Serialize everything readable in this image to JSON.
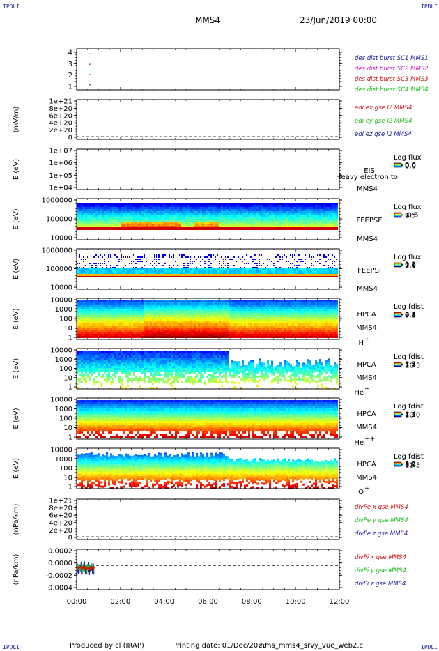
{
  "header": {
    "corner_label": "IPDLI",
    "spacecraft": "MMS4",
    "date": "23/Jun/2019 00:00"
  },
  "footer": {
    "produced_by": "Produced by cl (IRAP)",
    "printing_date": "Printing date: 01/Dec/2023",
    "filename": "mms_mms4_srvy_vue_web2.cl"
  },
  "colors": {
    "blue": "#1a1aa0",
    "magenta": "#d020d0",
    "red": "#d01010",
    "green": "#20c020"
  },
  "chart_data": [
    {
      "id": "burst",
      "type": "scatter",
      "yticks": [
        "4",
        "3",
        "2",
        "1"
      ],
      "ylim": [
        0.5,
        4.5
      ],
      "series": [
        {
          "name": "des dist burst SC1 MMS1",
          "color": "#1a1aa0",
          "x": [
            0.6
          ],
          "y": [
            1
          ]
        },
        {
          "name": "des dist burst SC2 MMS2",
          "color": "#d020d0",
          "x": [
            0.6
          ],
          "y": [
            2
          ]
        },
        {
          "name": "des dist burst SC3 MMS3",
          "color": "#d01010",
          "x": [
            0.6
          ],
          "y": [
            3
          ]
        },
        {
          "name": "des dist burst SC4 MMS4",
          "color": "#20c020",
          "x": [
            0.6
          ],
          "y": [
            4
          ]
        }
      ]
    },
    {
      "id": "edi",
      "type": "line",
      "ylabel": "(mV/m)",
      "yticks": [
        "1e+21",
        "8e+20",
        "6e+20",
        "4e+20",
        "2e+20",
        "0"
      ],
      "ylim": [
        0,
        1e+21
      ],
      "series": [
        {
          "name": "edi ex gse l2 MMS4",
          "color": "#d01010"
        },
        {
          "name": "edi ey gse l2 MMS4",
          "color": "#20c020"
        },
        {
          "name": "edi ez gse l2 MMS4",
          "color": "#1a1aa0"
        }
      ]
    },
    {
      "id": "eis",
      "type": "heatmap",
      "ylabel": "E (eV)",
      "yticks": [
        "1e+07",
        "1e+06",
        "1e+05",
        "1e+04"
      ],
      "label_top": "EIS",
      "label_bottom": "MMS4",
      "overlay_text": "Heavy electron to",
      "cbar_title": "Log flux",
      "cbar_ticks": [
        "0.0",
        "0.0",
        "0.0",
        "0.0"
      ]
    },
    {
      "id": "feepse",
      "type": "heatmap",
      "ylabel": "E (eV)",
      "yticks": [
        "1000000",
        "100000",
        "10000"
      ],
      "label_top": "FEEPSE",
      "label_bottom": "MMS4",
      "cbar_title": "Log flux",
      "cbar_ticks": [
        "2.5",
        "1.5",
        "0.5",
        "-0.5"
      ]
    },
    {
      "id": "feepsi",
      "type": "heatmap",
      "ylabel": "E (eV)",
      "yticks": [
        "1000000",
        "100000",
        "10000"
      ],
      "label_top": "FEEPSI",
      "label_bottom": "MMS4",
      "cbar_title": "Log flux",
      "cbar_ticks": [
        "2.9",
        "2.0",
        "1.1",
        "0.2"
      ]
    },
    {
      "id": "hpca_h",
      "type": "heatmap",
      "ylabel": "E (eV)",
      "yticks": [
        "10000",
        "1000",
        "100",
        "10",
        "1"
      ],
      "label_top": "HPCA",
      "label_bottom": "MMS4",
      "species": "H",
      "charge": "+",
      "cbar_title": "Log fdist",
      "cbar_ticks": [
        "9.3",
        "6.3",
        "3.4",
        "0.5"
      ]
    },
    {
      "id": "hpca_he",
      "type": "heatmap",
      "ylabel": "E (eV)",
      "yticks": [
        "10000",
        "1000",
        "100",
        "10",
        "1"
      ],
      "label_top": "HPCA",
      "label_bottom": "MMS4",
      "species": "He",
      "charge": "+",
      "cbar_title": "Log fdist",
      "cbar_ticks": [
        "10.3",
        "7.4",
        "4.5",
        "1.7"
      ]
    },
    {
      "id": "hpca_hepp",
      "type": "heatmap",
      "ylabel": "E (eV)",
      "yticks": [
        "10000",
        "1000",
        "100",
        "10",
        "1"
      ],
      "label_top": "HPCA",
      "label_bottom": "MMS4",
      "species": "He",
      "charge": "++",
      "cbar_title": "Log fdist",
      "cbar_ticks": [
        "10.0",
        "7.1",
        "4.2",
        "1.4"
      ]
    },
    {
      "id": "hpca_o",
      "type": "heatmap",
      "ylabel": "E (eV)",
      "yticks": [
        "10000",
        "1000",
        "100",
        "10",
        "1"
      ],
      "label_top": "HPCA",
      "label_bottom": "MMS4",
      "species": "O",
      "charge": "+",
      "cbar_title": "Log fdist",
      "cbar_ticks": [
        "11.5",
        "8.6",
        "5.7",
        "2.9"
      ]
    },
    {
      "id": "divpe",
      "type": "line",
      "ylabel": "(nPa/km)",
      "yticks": [
        "1e+21",
        "8e+20",
        "6e+20",
        "4e+20",
        "2e+20",
        "0"
      ],
      "ylim": [
        0,
        1e+21
      ],
      "series": [
        {
          "name": "divPe x gse MMS4",
          "color": "#d01010"
        },
        {
          "name": "divPe y gse MMS4",
          "color": "#20c020"
        },
        {
          "name": "divPe z gse MMS4",
          "color": "#1a1aa0"
        }
      ]
    },
    {
      "id": "divpi",
      "type": "line",
      "ylabel": "(nPa/km)",
      "yticks": [
        "0.0002",
        "0.0000",
        "-0.0002",
        "-0.0004"
      ],
      "ylim": [
        -0.00045,
        0.0003
      ],
      "series": [
        {
          "name": "divPi x gse MMS4",
          "color": "#d01010"
        },
        {
          "name": "divPi y gse MMS4",
          "color": "#20c020"
        },
        {
          "name": "divPi z gse MMS4",
          "color": "#1a1aa0"
        }
      ]
    }
  ],
  "time_axis": {
    "ticks": [
      "00:00",
      "02:00",
      "04:00",
      "06:00",
      "08:00",
      "10:00",
      "12:00"
    ],
    "xlim_hours": [
      0,
      12
    ]
  }
}
